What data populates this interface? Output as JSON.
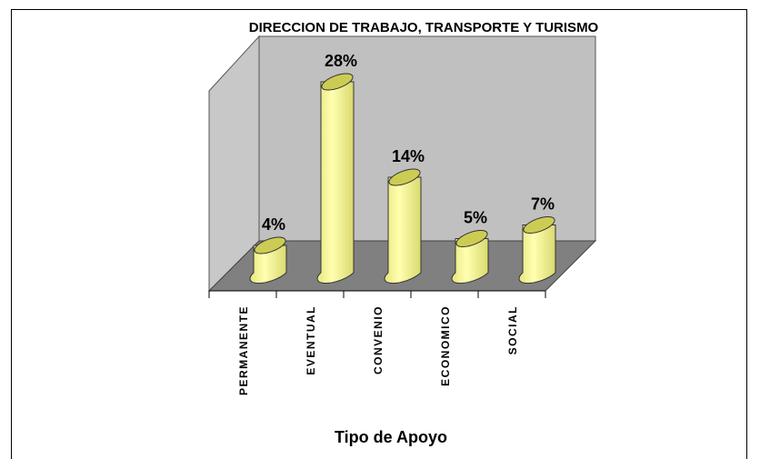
{
  "chart_data": {
    "type": "bar3d",
    "title": "DIRECCION DE TRABAJO, TRANSPORTE Y TURISMO",
    "x_label": "Tipo de Apoyo",
    "categories": [
      "PERMANENTE",
      "EVENTUAL",
      "CONVENIO",
      "ECONOMICO",
      "SOCIAL"
    ],
    "values": [
      4,
      28,
      14,
      5,
      7
    ],
    "value_labels": [
      "4%",
      "28%",
      "14%",
      "5%",
      "7%"
    ],
    "color": "#ffff99"
  }
}
